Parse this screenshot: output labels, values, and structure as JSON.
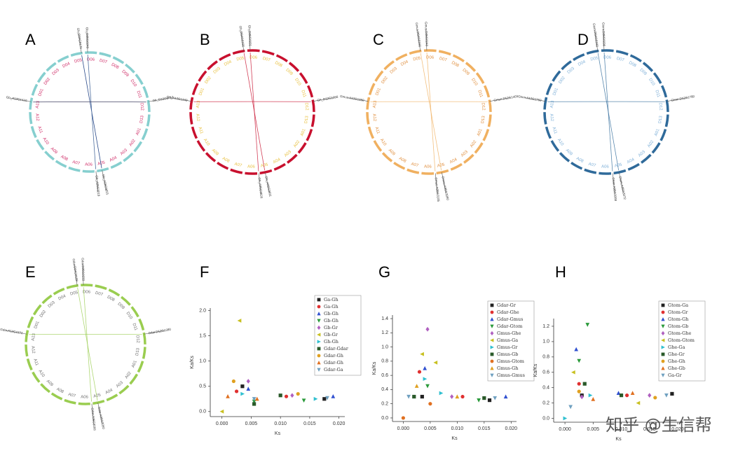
{
  "panel_labels": [
    "A",
    "B",
    "C",
    "D",
    "E",
    "F",
    "G",
    "H"
  ],
  "circos": [
    {
      "ring_color": "#86cfcf",
      "label_color": "#d0306a",
      "chromosomes": [
        "D01",
        "D02",
        "D03",
        "D04",
        "D05",
        "D06",
        "D07",
        "D08",
        "D09",
        "D10",
        "D11",
        "D12",
        "D13",
        "A01",
        "A02",
        "A03",
        "A04",
        "A05",
        "A06",
        "A07",
        "A08",
        "A09",
        "A10",
        "A11",
        "A12",
        "A13"
      ],
      "genes": [
        "Gb_D04G0171",
        "Gb_D05G0249",
        "Gb_A05G3201",
        "Gb_A05G3219",
        "Gb_A12G1410",
        "Gb_D12G1412"
      ]
    },
    {
      "ring_color": "#c8102e",
      "label_color": "#e8c040",
      "chromosomes": [
        "D01",
        "D02",
        "D03",
        "D04",
        "D05",
        "D06",
        "D07",
        "D08",
        "D09",
        "D10",
        "D11",
        "D12",
        "D13",
        "A01",
        "A02",
        "A03",
        "A04",
        "A05",
        "A06",
        "A07",
        "A08",
        "A09",
        "A10",
        "A11",
        "A12",
        "A13"
      ],
      "genes": [
        "Gh_D04G0156",
        "Gh_D05G0231",
        "Gh_A05G3011",
        "Gh_A05G3026",
        "Gh_A12G1349",
        "Gh_D12G1366"
      ]
    },
    {
      "ring_color": "#f0b060",
      "label_color": "#e09040",
      "chromosomes": [
        "D01",
        "D02",
        "D03",
        "D04",
        "D05",
        "D06",
        "D07",
        "D08",
        "D09",
        "D10",
        "D11",
        "D12",
        "D13",
        "A01",
        "A02",
        "A03",
        "A04",
        "A05",
        "A06",
        "A07",
        "A08",
        "A09",
        "A10",
        "A11",
        "A12",
        "A13"
      ],
      "genes": [
        "Gmus.D04G0166",
        "Gmus.D05G0240",
        "Gmus.A05G3090",
        "Gmus.A05G3105",
        "Gmus.A12G1380",
        "Gmus.D12G1403"
      ]
    },
    {
      "ring_color": "#2f6a9a",
      "label_color": "#7fb0d8",
      "chromosomes": [
        "D01",
        "D02",
        "D03",
        "D04",
        "D05",
        "D06",
        "D07",
        "D08",
        "D09",
        "D10",
        "D11",
        "D12",
        "D13",
        "A01",
        "A02",
        "A03",
        "A04",
        "A05",
        "A06",
        "A07",
        "A08",
        "A09",
        "A10",
        "A11",
        "A12",
        "A13"
      ],
      "genes": [
        "Gtom.D04G0160",
        "Gtom.D05G0236",
        "Gtom.A05G3072",
        "Gtom.A05G3088",
        "Gtom.A12G1760",
        "Gtom.D12G1780"
      ]
    },
    {
      "ring_color": "#9acd50",
      "label_color": "#707070",
      "chromosomes": [
        "D01",
        "D02",
        "D03",
        "D04",
        "D05",
        "D06",
        "D07",
        "D08",
        "D09",
        "D10",
        "D11",
        "D12",
        "D13",
        "A01",
        "A02",
        "A03",
        "A04",
        "A05",
        "A06",
        "A07",
        "A08",
        "A09",
        "A10",
        "A11",
        "A12",
        "A13"
      ],
      "genes": [
        "Gdar.D04G0158",
        "Gdar.D05G0233",
        "Gdar.A05G3050",
        "Gdar.A05G3066",
        "Gdar.A12G1372",
        "Gdar.D12G1390"
      ]
    }
  ],
  "chart_data": [
    {
      "type": "scatter",
      "x_label": "Ks",
      "y_label": "Ka/Ks",
      "xlim": [
        -0.002,
        0.021
      ],
      "ylim": [
        -0.1,
        2.05
      ],
      "xticks": [
        {
          "value": 0,
          "label": "0.000"
        },
        {
          "value": 0.005,
          "label": "0.005"
        },
        {
          "value": 0.01,
          "label": "0.010"
        },
        {
          "value": 0.015,
          "label": "0.015"
        },
        {
          "value": 0.02,
          "label": "0.020"
        }
      ],
      "yticks": [
        {
          "value": 0,
          "label": "0.0"
        },
        0.5,
        {
          "value": 1,
          "label": "1.0"
        },
        1.5,
        {
          "value": 2,
          "label": "2.0"
        }
      ],
      "series": [
        {
          "name": "Ga-Gh",
          "color": "#222222",
          "x": [
            0.0035,
            0.0175
          ],
          "values": [
            0.5,
            0.25
          ]
        },
        {
          "name": "Ga-Gh",
          "color": "#e03030",
          "x": [
            0.0025,
            0.011
          ],
          "values": [
            0.4,
            0.3
          ]
        },
        {
          "name": "Gb-Gh",
          "color": "#3050d0",
          "x": [
            0.0045,
            0.019
          ],
          "values": [
            0.45,
            0.3
          ]
        },
        {
          "name": "Gb-Gh",
          "color": "#2a9a3a",
          "x": [
            0.0055,
            0.014
          ],
          "values": [
            0.2,
            0.22
          ]
        },
        {
          "name": "Gb-Gr",
          "color": "#b060c0",
          "x": [
            0.0045,
            0.012
          ],
          "values": [
            0.6,
            0.32
          ]
        },
        {
          "name": "Gb-Gr",
          "color": "#c8c020",
          "x": [
            0.003,
            0
          ],
          "values": [
            1.8,
            0
          ]
        },
        {
          "name": "Gh-Gh",
          "color": "#30c0d0",
          "x": [
            0.0035,
            0.016
          ],
          "values": [
            0.35,
            0.25
          ]
        },
        {
          "name": "Gdar-Gdar",
          "color": "#2a5a2a",
          "x": [
            0.0055,
            0.01
          ],
          "values": [
            0.15,
            0.32
          ]
        },
        {
          "name": "Gdar-Gh",
          "color": "#e0a020",
          "x": [
            0.002,
            0.013
          ],
          "values": [
            0.6,
            0.35
          ]
        },
        {
          "name": "Gdar-Gh",
          "color": "#e07020",
          "x": [
            0.001,
            0.006
          ],
          "values": [
            0.3,
            0.25
          ]
        },
        {
          "name": "Gdar-Ga",
          "color": "#6fa0c0",
          "x": [
            0.0055,
            0.018
          ],
          "values": [
            0.25,
            0.27
          ]
        }
      ]
    },
    {
      "type": "scatter",
      "x_label": "Ks",
      "y_label": "Ka/Ks",
      "xlim": [
        -0.002,
        0.021
      ],
      "ylim": [
        -0.05,
        1.45
      ],
      "xticks": [
        {
          "value": 0,
          "label": "0.000"
        },
        {
          "value": 0.005,
          "label": "0.005"
        },
        {
          "value": 0.01,
          "label": "0.010"
        },
        {
          "value": 0.015,
          "label": "0.015"
        },
        {
          "value": 0.02,
          "label": "0.020"
        }
      ],
      "yticks": [
        {
          "value": 0,
          "label": "0.0"
        },
        0.2,
        0.4,
        0.6,
        0.8,
        {
          "value": 1,
          "label": "1.0"
        },
        1.2,
        1.4
      ],
      "series": [
        {
          "name": "Gdar-Gr",
          "color": "#222222",
          "x": [
            0.0035,
            0.016
          ],
          "values": [
            0.3,
            0.25
          ]
        },
        {
          "name": "Gdar-Ghe",
          "color": "#e03030",
          "x": [
            0.003,
            0.011
          ],
          "values": [
            0.65,
            0.3
          ]
        },
        {
          "name": "Gdar-Gmus",
          "color": "#3050d0",
          "x": [
            0.004,
            0.019
          ],
          "values": [
            0.7,
            0.3
          ]
        },
        {
          "name": "Gdar-Gtom",
          "color": "#2a9a3a",
          "x": [
            0.0045,
            0.014
          ],
          "values": [
            0.45,
            0.25
          ]
        },
        {
          "name": "Gmus-Ghe",
          "color": "#b060c0",
          "x": [
            0.0045,
            0.009
          ],
          "values": [
            1.25,
            0.3
          ]
        },
        {
          "name": "Gmus-Ga",
          "color": "#c8c020",
          "x": [
            0.0035,
            0.006
          ],
          "values": [
            0.9,
            0.78
          ]
        },
        {
          "name": "Gmus-Gr",
          "color": "#30c0d0",
          "x": [
            0.004,
            0.007
          ],
          "values": [
            0.55,
            0.35
          ]
        },
        {
          "name": "Gmus-Gb",
          "color": "#2a5a2a",
          "x": [
            0.002,
            0.015
          ],
          "values": [
            0.3,
            0.28
          ]
        },
        {
          "name": "Gmus-Gtom",
          "color": "#e07020",
          "x": [
            0,
            0.005
          ],
          "values": [
            0,
            0.2
          ]
        },
        {
          "name": "Gmus-Gh",
          "color": "#e0a020",
          "x": [
            0.0025,
            0.01
          ],
          "values": [
            0.45,
            0.3
          ]
        },
        {
          "name": "Gmus-Gmus",
          "color": "#6fa0c0",
          "x": [
            0.001,
            0.017
          ],
          "values": [
            0.3,
            0.28
          ]
        }
      ]
    },
    {
      "type": "scatter",
      "x_label": "Ks",
      "y_label": "Ka/Ks",
      "xlim": [
        -0.002,
        0.021
      ],
      "ylim": [
        -0.05,
        1.3
      ],
      "xticks": [
        {
          "value": 0,
          "label": "0.000"
        },
        {
          "value": 0.005,
          "label": "0.005"
        },
        {
          "value": 0.01,
          "label": "0.010"
        },
        {
          "value": 0.015,
          "label": "0.015"
        },
        {
          "value": 0.02,
          "label": "0.020"
        }
      ],
      "yticks": [
        {
          "value": 0,
          "label": "0.0"
        },
        0.2,
        0.4,
        0.6,
        0.8,
        {
          "value": 1,
          "label": "1.0"
        },
        1.2
      ],
      "series": [
        {
          "name": "Gtom-Ga",
          "color": "#222222",
          "x": [
            0.003,
            0.019
          ],
          "values": [
            0.3,
            0.32
          ]
        },
        {
          "name": "Gtom-Gr",
          "color": "#e03030",
          "x": [
            0.0025,
            0.011
          ],
          "values": [
            0.45,
            0.3
          ]
        },
        {
          "name": "Gtom-Gh",
          "color": "#3050d0",
          "x": [
            0.002,
            0.0095
          ],
          "values": [
            0.9,
            0.33
          ]
        },
        {
          "name": "Gtom-Gb",
          "color": "#2a9a3a",
          "x": [
            0.0025,
            0.004
          ],
          "values": [
            0.75,
            1.22
          ]
        },
        {
          "name": "Gtom-Ghe",
          "color": "#b060c0",
          "x": [
            0.003,
            0.015
          ],
          "values": [
            0.28,
            0.3
          ]
        },
        {
          "name": "Gtom-Gtom",
          "color": "#c8c020",
          "x": [
            0.0015,
            0.013
          ],
          "values": [
            0.6,
            0.2
          ]
        },
        {
          "name": "Ghe-Ga",
          "color": "#30c0d0",
          "x": [
            0,
            0.0045
          ],
          "values": [
            0,
            0.3
          ]
        },
        {
          "name": "Ghe-Gr",
          "color": "#2a5a2a",
          "x": [
            0.0035,
            0.01
          ],
          "values": [
            0.45,
            0.3
          ]
        },
        {
          "name": "Ghe-Gh",
          "color": "#e0a020",
          "x": [
            0.0025,
            0.016
          ],
          "values": [
            0.35,
            0.27
          ]
        },
        {
          "name": "Ghe-Gb",
          "color": "#e07020",
          "x": [
            0.005,
            0.012
          ],
          "values": [
            0.25,
            0.33
          ]
        },
        {
          "name": "Ga-Gr",
          "color": "#6fa0c0",
          "x": [
            0.001,
            0.018
          ],
          "values": [
            0.15,
            0.3
          ]
        }
      ]
    }
  ],
  "watermark": "知乎 @生信帮"
}
